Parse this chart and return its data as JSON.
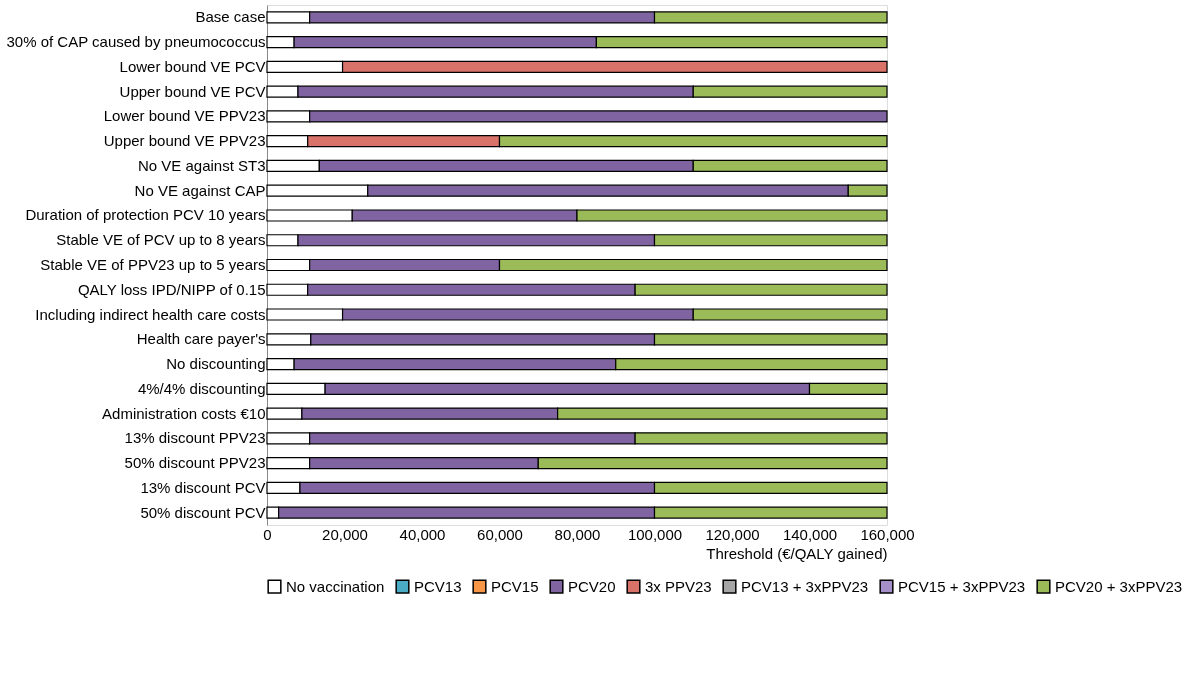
{
  "chart_data": {
    "type": "bar",
    "orientation": "horizontal",
    "stacked": true,
    "xlabel": "Threshold (€/QALY gained)",
    "categories": [
      "Base case",
      "30% of CAP caused by pneumococcus",
      "Lower bound VE PCV",
      "Upper bound VE PCV",
      "Lower bound VE PPV23",
      "Upper bound VE PPV23",
      "No VE against ST3",
      "No VE against CAP",
      "Duration of protection PCV 10 years",
      "Stable VE of PCV up to 8 years",
      "Stable VE of PPV23 up to 5 years",
      "QALY loss IPD/NIPP of 0.15",
      "Including indirect health care costs",
      "Health care payer's",
      "No discounting",
      "4%/4% discounting",
      "Administration costs €10",
      "13% discount PPV23",
      "50% discount PPV23",
      "13% discount PCV",
      "50% discount PCV"
    ],
    "series": [
      {
        "name": "No vaccination",
        "color": "#ffffff",
        "values": [
          11000,
          7000,
          19500,
          8000,
          11000,
          10500,
          13500,
          26000,
          22000,
          8000,
          11000,
          10500,
          19500,
          11300,
          7000,
          15000,
          9000,
          11000,
          11000,
          8500,
          3000
        ]
      },
      {
        "name": "PCV13",
        "color": "#4bacc6",
        "values": [
          null,
          null,
          null,
          null,
          null,
          null,
          null,
          null,
          null,
          null,
          null,
          null,
          null,
          null,
          null,
          null,
          null,
          null,
          null,
          null,
          null
        ]
      },
      {
        "name": "PCV15",
        "color": "#f79646",
        "values": [
          null,
          null,
          null,
          null,
          null,
          null,
          null,
          null,
          null,
          null,
          null,
          null,
          null,
          null,
          null,
          null,
          null,
          null,
          null,
          null,
          null
        ]
      },
      {
        "name": "PCV20",
        "color": "#8064a2",
        "values": [
          89000,
          78000,
          null,
          102000,
          149000,
          null,
          96500,
          124000,
          58000,
          92000,
          49000,
          84500,
          90500,
          88700,
          83000,
          125000,
          66000,
          84000,
          59000,
          91500,
          97000
        ]
      },
      {
        "name": "3x PPV23",
        "color": "#d9736a",
        "values": [
          null,
          null,
          140500,
          null,
          null,
          49500,
          null,
          null,
          null,
          null,
          null,
          null,
          null,
          null,
          null,
          null,
          null,
          null,
          null,
          null,
          null
        ]
      },
      {
        "name": "PCV13 + 3xPPV23",
        "color": "#a5a5a5",
        "values": [
          null,
          null,
          null,
          null,
          null,
          null,
          null,
          null,
          null,
          null,
          null,
          null,
          null,
          null,
          null,
          null,
          null,
          null,
          null,
          null,
          null
        ]
      },
      {
        "name": "PCV15 + 3xPPV23",
        "color": "#a48fc8",
        "values": [
          null,
          null,
          null,
          null,
          null,
          null,
          null,
          null,
          null,
          null,
          null,
          null,
          null,
          null,
          null,
          null,
          null,
          null,
          null,
          null,
          null
        ]
      },
      {
        "name": "PCV20 + 3xPPV23",
        "color": "#9bbb59",
        "values": [
          60000,
          75000,
          null,
          50000,
          null,
          100000,
          50000,
          10000,
          80000,
          60000,
          100000,
          65000,
          50000,
          60000,
          70000,
          20000,
          85000,
          65000,
          90000,
          60000,
          60000
        ]
      }
    ],
    "xlim": [
      0,
      160000
    ],
    "xticks": [
      0,
      {
        "value": 20000,
        "label": "20,000"
      },
      {
        "value": 40000,
        "label": "40,000"
      },
      {
        "value": 60000,
        "label": "60,000"
      },
      {
        "value": 80000,
        "label": "80,000"
      },
      {
        "value": 100000,
        "label": "100,000"
      },
      {
        "value": 120000,
        "label": "120,000"
      },
      {
        "value": 140000,
        "label": "140,000"
      },
      {
        "value": 160000,
        "label": "160,000"
      }
    ],
    "grid": false,
    "legend": "bottom"
  }
}
